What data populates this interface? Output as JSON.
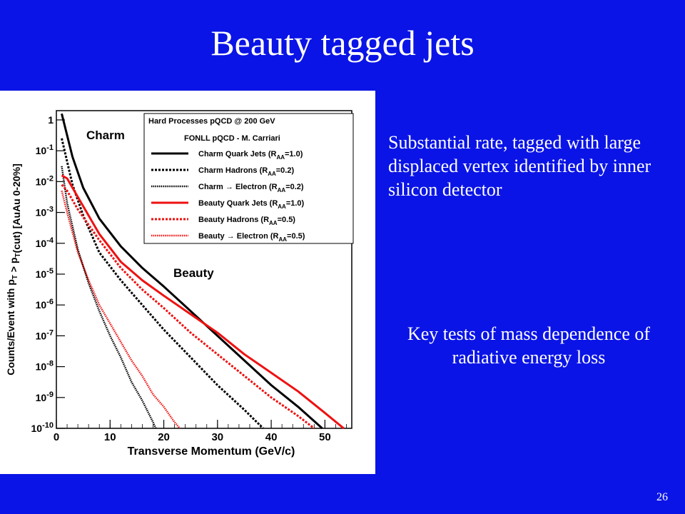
{
  "slide": {
    "title": "Beauty tagged jets",
    "bullet1": "Substantial rate, tagged with large displaced vertex identified by inner silicon detector",
    "bullet2": "Key tests of mass dependence of radiative energy loss",
    "page_number": "26"
  },
  "chart_data": {
    "type": "line",
    "title": "",
    "xlabel": "Transverse Momentum (GeV/c)",
    "ylabel": "Counts/Event with p_T > p_T(cut) [AuAu 0-20%]",
    "xlim": [
      0,
      55
    ],
    "ylim_log10": [
      -10,
      0.3
    ],
    "log_y": true,
    "x_ticks": [
      "0",
      "10",
      "20",
      "30",
      "40",
      "50"
    ],
    "y_ticks": [
      "1",
      "10^-1",
      "10^-2",
      "10^-3",
      "10^-4",
      "10^-5",
      "10^-6",
      "10^-7",
      "10^-8",
      "10^-9",
      "10^-10"
    ],
    "legend_position": "top-right",
    "legend_header": [
      "Hard Processes pQCD @ 200 GeV",
      "FONLL pQCD - M. Carriari"
    ],
    "annotations": [
      {
        "text": "Charm",
        "color": "#000000"
      },
      {
        "text": "Beauty",
        "color": "#e02020"
      }
    ],
    "series": [
      {
        "name": "Charm Quark Jets (R_AA=1.0)",
        "color": "#000000",
        "style": "solid",
        "x": [
          1,
          3,
          5,
          8,
          12,
          16,
          20,
          25,
          30,
          35,
          40,
          45,
          49.5
        ],
        "y_log10": [
          0.2,
          -1.2,
          -2.2,
          -3.2,
          -4.1,
          -4.8,
          -5.4,
          -6.2,
          -7.0,
          -7.8,
          -8.6,
          -9.3,
          -10
        ]
      },
      {
        "name": "Charm Hadrons (R_AA=0.2)",
        "color": "#000000",
        "style": "dotted",
        "x": [
          1,
          3,
          5,
          8,
          12,
          16,
          20,
          25,
          30,
          35,
          38.5
        ],
        "y_log10": [
          -0.6,
          -2.1,
          -3.1,
          -4.3,
          -5.2,
          -6.0,
          -6.8,
          -7.7,
          -8.6,
          -9.4,
          -10
        ]
      },
      {
        "name": "Charm → Electron (R_AA=0.2)",
        "color": "#000000",
        "style": "dense",
        "x": [
          1,
          2,
          4,
          6,
          8,
          10,
          12,
          14,
          16,
          18,
          18.5
        ],
        "y_log10": [
          -1.5,
          -2.7,
          -4.2,
          -5.3,
          -6.2,
          -7.0,
          -7.7,
          -8.5,
          -9.1,
          -9.8,
          -10
        ]
      },
      {
        "name": "Beauty Quark Jets (R_AA=1.0)",
        "color": "#ee1111",
        "style": "solid",
        "x": [
          1,
          2,
          4,
          8,
          12,
          16,
          20,
          25,
          30,
          35,
          40,
          45,
          50,
          53.5
        ],
        "y_log10": [
          -1.8,
          -1.9,
          -2.5,
          -3.7,
          -4.6,
          -5.2,
          -5.7,
          -6.3,
          -6.9,
          -7.6,
          -8.2,
          -8.8,
          -9.5,
          -10
        ]
      },
      {
        "name": "Beauty Hadrons (R_AA=0.5)",
        "color": "#ee1111",
        "style": "dotted",
        "x": [
          1,
          2,
          4,
          8,
          12,
          16,
          20,
          25,
          30,
          35,
          40,
          45,
          48
        ],
        "y_log10": [
          -2.1,
          -2.3,
          -2.9,
          -3.9,
          -4.8,
          -5.5,
          -6.1,
          -6.9,
          -7.6,
          -8.3,
          -9.0,
          -9.6,
          -10
        ]
      },
      {
        "name": "Beauty → Electron (R_AA=0.5)",
        "color": "#ee1111",
        "style": "dense",
        "x": [
          1,
          2,
          4,
          6,
          8,
          10,
          12,
          14,
          16,
          18,
          20,
          22,
          23
        ],
        "y_log10": [
          -2.3,
          -3.0,
          -4.3,
          -5.2,
          -6.0,
          -6.6,
          -7.2,
          -7.8,
          -8.3,
          -8.9,
          -9.3,
          -9.8,
          -10
        ]
      }
    ]
  }
}
